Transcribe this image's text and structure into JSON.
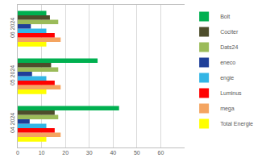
{
  "chart_data": {
    "type": "bar",
    "orientation": "horizontal",
    "categories": [
      "04 2024",
      "05 2024",
      "06 2024"
    ],
    "series": [
      {
        "name": "Bolt",
        "color": "#00b050",
        "values": [
          42.5,
          33.5,
          12
        ]
      },
      {
        "name": "Cociter",
        "color": "#4d4d2b",
        "values": [
          15.5,
          14,
          13.5
        ]
      },
      {
        "name": "Dats24",
        "color": "#9bbb59",
        "values": [
          17,
          17,
          17
        ]
      },
      {
        "name": "eneco",
        "color": "#1f3f99",
        "values": [
          5,
          6,
          5.5
        ]
      },
      {
        "name": "engie",
        "color": "#33b5e5",
        "values": [
          12,
          12,
          12
        ]
      },
      {
        "name": "Luminus",
        "color": "#ff0000",
        "values": [
          15.5,
          15.5,
          15.5
        ]
      },
      {
        "name": "mega",
        "color": "#f4a460",
        "values": [
          18,
          18,
          18
        ]
      },
      {
        "name": "Total Energie",
        "color": "#ffff00",
        "values": [
          12,
          12,
          12
        ]
      }
    ],
    "xlim": [
      0,
      70
    ],
    "xticks": [
      0,
      10,
      20,
      30,
      40,
      50,
      60
    ],
    "grid": true,
    "legend": "right"
  }
}
